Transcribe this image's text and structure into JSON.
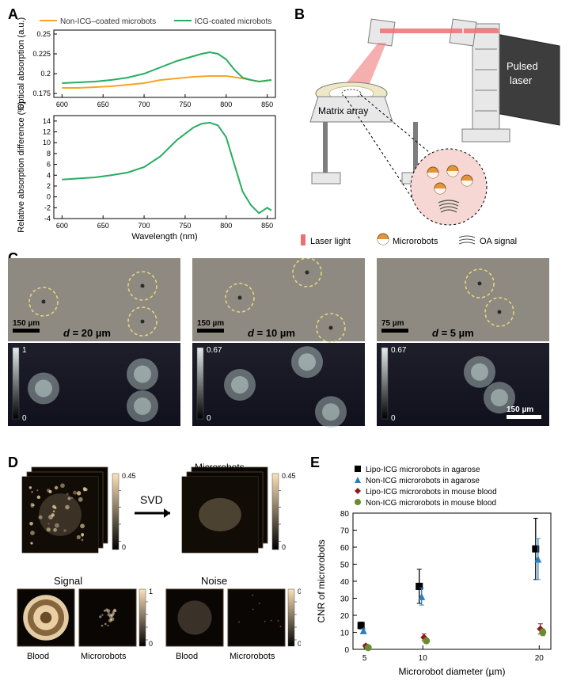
{
  "figure": {
    "panelA": {
      "label": "A",
      "chart1": {
        "type": "line",
        "xlabel": "",
        "ylabel": "Optical absorption (a.u.)",
        "label_fontsize": 11,
        "xlim": [
          590,
          860
        ],
        "ylim": [
          0.17,
          0.255
        ],
        "xticks": [
          600,
          650,
          700,
          750,
          800,
          850
        ],
        "yticks": [
          0.175,
          0.2,
          0.225,
          0.25
        ],
        "grid": false,
        "background_color": "#ffffff",
        "legend": [
          {
            "label": "Non-ICG–coated microbots",
            "color": "#f5a623"
          },
          {
            "label": "ICG-coated microbots",
            "color": "#27ae60"
          }
        ],
        "series": [
          {
            "name": "non-icg",
            "color": "#f5a623",
            "line_width": 2,
            "x": [
              600,
              620,
              640,
              660,
              680,
              700,
              720,
              740,
              760,
              780,
              800,
              820,
              840,
              855
            ],
            "y": [
              0.182,
              0.182,
              0.183,
              0.184,
              0.186,
              0.188,
              0.192,
              0.194,
              0.196,
              0.197,
              0.197,
              0.194,
              0.19,
              0.192
            ]
          },
          {
            "name": "icg",
            "color": "#27ae60",
            "line_width": 2,
            "x": [
              600,
              620,
              640,
              660,
              680,
              700,
              720,
              740,
              760,
              770,
              780,
              790,
              800,
              810,
              820,
              830,
              840,
              855
            ],
            "y": [
              0.188,
              0.189,
              0.19,
              0.192,
              0.195,
              0.2,
              0.208,
              0.216,
              0.222,
              0.225,
              0.227,
              0.225,
              0.218,
              0.205,
              0.195,
              0.192,
              0.19,
              0.192
            ]
          }
        ]
      },
      "chart2": {
        "type": "line",
        "xlabel": "Wavelength (nm)",
        "ylabel": "Relative absorption difference (%)",
        "label_fontsize": 11,
        "xlim": [
          590,
          860
        ],
        "ylim": [
          -4,
          15
        ],
        "xticks": [
          600,
          650,
          700,
          750,
          800,
          850
        ],
        "yticks": [
          -4,
          -2,
          0,
          2,
          4,
          6,
          8,
          10,
          12,
          14
        ],
        "grid": false,
        "background_color": "#ffffff",
        "series": [
          {
            "name": "diff",
            "color": "#27ae60",
            "line_width": 2,
            "x": [
              600,
              620,
              640,
              660,
              680,
              700,
              720,
              740,
              760,
              770,
              780,
              790,
              800,
              810,
              820,
              830,
              840,
              850,
              855
            ],
            "y": [
              3.2,
              3.4,
              3.6,
              4.0,
              4.5,
              5.5,
              7.5,
              10.5,
              12.8,
              13.5,
              13.7,
              13.2,
              11.0,
              6.0,
              1.0,
              -1.5,
              -3.0,
              -2.0,
              -2.5
            ]
          }
        ]
      }
    },
    "panelB": {
      "label": "B",
      "annotations": {
        "pulsed_laser": "Pulsed laser",
        "matrix_array": "Matrix array"
      },
      "legend": [
        {
          "label": "Laser light",
          "color": "#ef6e6e",
          "shape": "rect"
        },
        {
          "label": "Microrobots",
          "colors": [
            "#e5943a",
            "#ffffff"
          ],
          "shape": "half-circle"
        },
        {
          "label": "OA signal",
          "color": "#5c6b5f",
          "shape": "arcs"
        }
      ],
      "colors": {
        "instrument_fill": "#e8e8e8",
        "instrument_stroke": "#7d7d7d",
        "pulsed_laser_box": "#3d3d3d",
        "laser_beam": "#ef6e6e",
        "zoom_circle_fill": "#f6d7d4",
        "microrobot_orange": "#e5943a"
      }
    },
    "panelC": {
      "label": "C",
      "images": [
        {
          "caption_var": "d",
          "caption_value": "20 µm",
          "scalebar": "150 µm",
          "circles": 3,
          "cmap_max": 1
        },
        {
          "caption_var": "d",
          "caption_value": "10 µm",
          "scalebar": "150 µm",
          "circles": 3,
          "cmap_max": 0.67
        },
        {
          "caption_var": "d",
          "caption_value": "5 µm",
          "scalebar": "75 µm",
          "circles": 2,
          "cmap_max": 0.67,
          "oa_scalebar": "150 µm"
        }
      ],
      "colors": {
        "top_bg": "#8e8a82",
        "circle_stroke": "#e7d97a",
        "bottom_bg": "#12121f",
        "blob": "#b0c2c0",
        "cmap_low": "#000000",
        "cmap_high": "#e4ecec"
      }
    },
    "panelD": {
      "label": "D",
      "svd_arrow_label": "SVD",
      "row1": {
        "label_microrobots": "Microrobots",
        "cbar_max": 0.45
      },
      "row2": {
        "signal_label": "Signal",
        "noise_label": "Noise",
        "blood_label": "Blood",
        "microrobots_label": "Microrobots",
        "signal_cmax": 1,
        "noise_cmax": 0.25
      },
      "cmap": {
        "low": "#000000",
        "high": "#fce2b7"
      }
    },
    "panelE": {
      "label": "E",
      "type": "scatter",
      "xlabel": "Microrobot diameter (µm)",
      "ylabel": "CNR of microrobots",
      "label_fontsize": 12,
      "xlim": [
        4,
        21
      ],
      "ylim": [
        0,
        80
      ],
      "xticks": [
        5,
        10,
        20
      ],
      "yticks": [
        0,
        10,
        20,
        30,
        40,
        50,
        60,
        70,
        80
      ],
      "legend": [
        {
          "label": "Lipo-ICG microrobots in agarose",
          "marker": "square",
          "color": "#000000"
        },
        {
          "label": "Non-ICG microrobots in agarose",
          "marker": "triangle",
          "color": "#2b7fbd"
        },
        {
          "label": "Lipo-ICG microrobots in mouse blood",
          "marker": "diamond",
          "color": "#8b1a1a"
        },
        {
          "label": "Non-ICG microrobots in mouse blood",
          "marker": "circle",
          "color": "#6a8b2e"
        }
      ],
      "series": [
        {
          "name": "lipo-agarose",
          "marker": "square",
          "color": "#000000",
          "x": [
            5,
            10,
            20
          ],
          "y": [
            14,
            37,
            59
          ],
          "err": [
            2,
            10,
            18
          ]
        },
        {
          "name": "non-agarose",
          "marker": "triangle",
          "color": "#2b7fbd",
          "x": [
            5,
            10,
            20
          ],
          "y": [
            11,
            31,
            53
          ],
          "err": [
            1,
            5,
            12
          ]
        },
        {
          "name": "lipo-blood",
          "marker": "diamond",
          "color": "#8b1a1a",
          "x": [
            5,
            10,
            20
          ],
          "y": [
            2,
            7,
            12
          ],
          "err": [
            1,
            2,
            3
          ]
        },
        {
          "name": "non-blood",
          "marker": "circle",
          "color": "#6a8b2e",
          "x": [
            5,
            10,
            20
          ],
          "y": [
            1,
            5,
            10
          ],
          "err": [
            0.5,
            1,
            2
          ]
        }
      ]
    }
  }
}
